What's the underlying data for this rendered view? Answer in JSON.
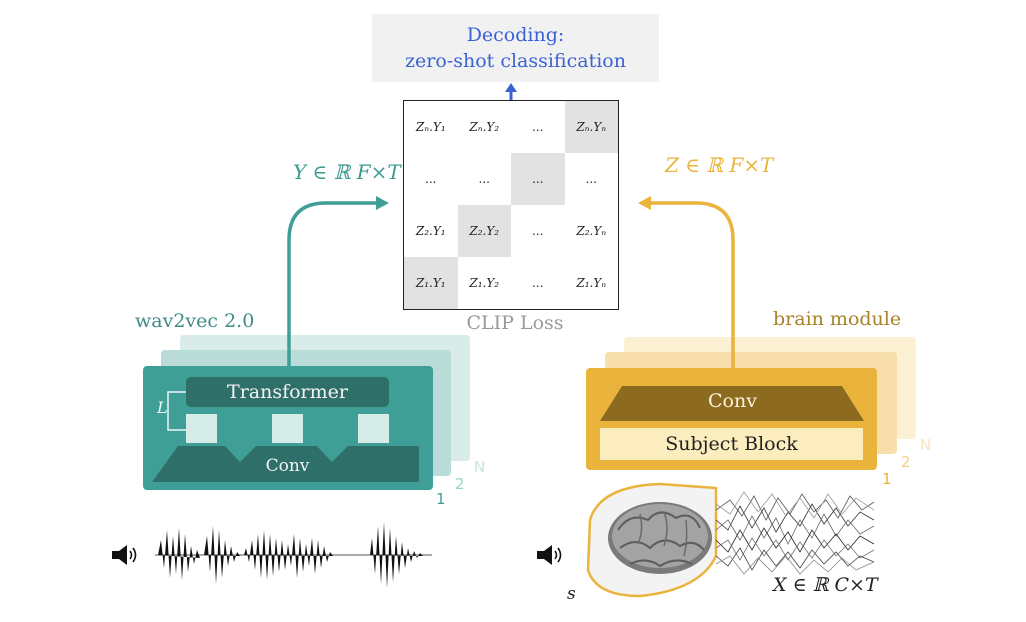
{
  "decoding": {
    "line1": "Decoding:",
    "line2": "zero-shot classification",
    "color": "#3a62d3"
  },
  "matrix": {
    "rows": [
      [
        "Zₙ.Y₁",
        "Zₙ.Y₂",
        "...",
        "Zₙ.Yₙ"
      ],
      [
        "...",
        "...",
        "...",
        "..."
      ],
      [
        "Z₂.Y₁",
        "Z₂.Y₂",
        "...",
        "Z₂.Yₙ"
      ],
      [
        "Z₁.Y₁",
        "Z₁.Y₂",
        "...",
        "Z₁.Yₙ"
      ]
    ],
    "highlighted_diagonal": true
  },
  "clip_loss_label": "CLIP Loss",
  "y_embedding_label": "Y ∈ ℝ F×T",
  "z_embedding_label": "Z ∈ ℝ F×T",
  "wav2vec": {
    "title": "wav2vec 2.0",
    "transformer_label": "Transformer",
    "conv_label": "Conv",
    "layer_label": "L",
    "stack_indices": [
      "1",
      "2",
      "N"
    ],
    "color": "#3f9f97"
  },
  "brain": {
    "title": "brain module",
    "conv_label": "Conv",
    "subject_block_label": "Subject Block",
    "stack_indices": [
      "1",
      "2",
      "N"
    ],
    "color": "#eab33c"
  },
  "x_input_label": "X ∈ ℝ C×T",
  "subject_label": "s",
  "icons": {
    "left_audio": "speaker-icon",
    "right_audio": "speaker-icon"
  }
}
